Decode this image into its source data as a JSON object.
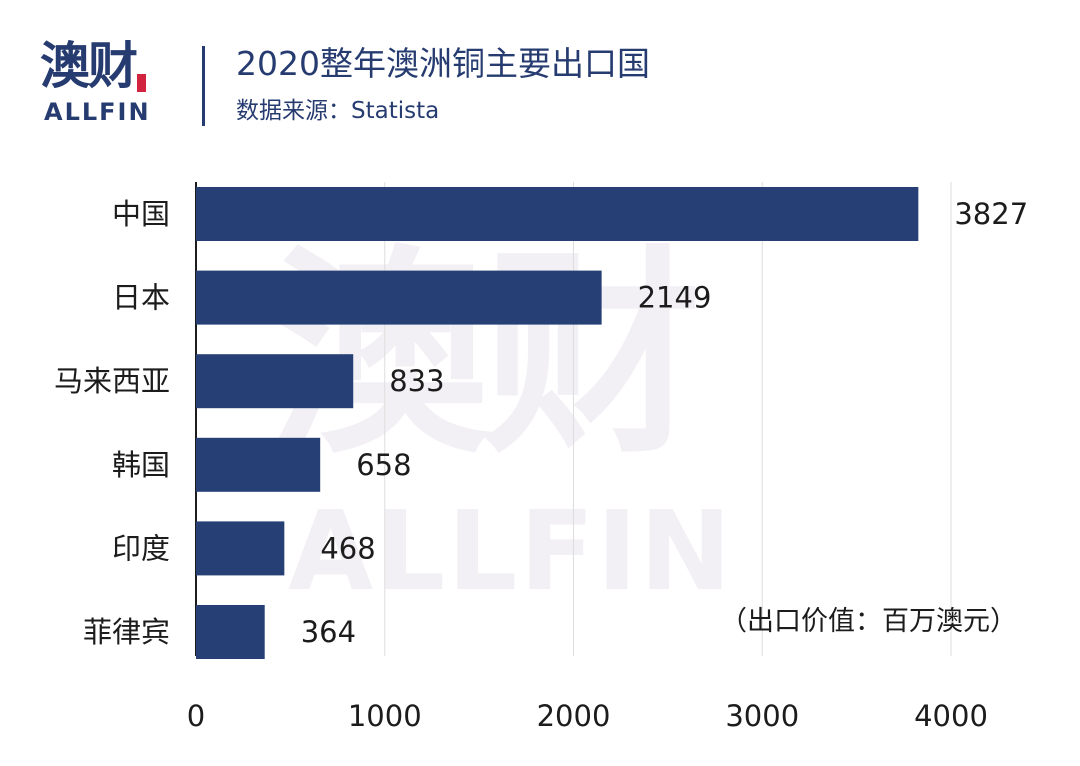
{
  "logo": {
    "cn": "澳财",
    "en": "ALLFIN"
  },
  "header": {
    "title": "2020整年澳洲铜主要出口国",
    "source": "数据来源：Statista"
  },
  "watermark": {
    "cn": "澳财",
    "en": "ALLFIN"
  },
  "unit_note": "（出口价值：百万澳元）",
  "colors": {
    "bar": "#263f74",
    "title": "#263b70",
    "logo_accent": "#d2243f",
    "watermark": "#f2f0f5"
  },
  "chart_data": {
    "type": "bar",
    "orientation": "horizontal",
    "title": "2020整年澳洲铜主要出口国",
    "subtitle": "数据来源：Statista",
    "categories": [
      "中国",
      "日本",
      "马来西亚",
      "韩国",
      "印度",
      "菲律宾"
    ],
    "values": [
      3827,
      2149,
      833,
      658,
      468,
      364
    ],
    "value_labels": [
      "3827",
      "2149",
      "833",
      "658",
      "468",
      "364"
    ],
    "xlim": [
      0,
      4000
    ],
    "x_ticks": [
      0,
      1000,
      2000,
      3000,
      4000
    ],
    "x_tick_labels": [
      "0",
      "1000",
      "2000",
      "3000",
      "4000"
    ],
    "grid": "vertical",
    "legend": "none",
    "annotation": "（出口价值：百万澳元）"
  }
}
